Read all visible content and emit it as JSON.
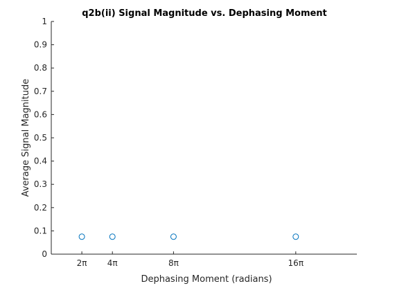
{
  "chart_data": {
    "type": "scatter",
    "title": "q2b(ii) Signal Magnitude vs. Dephasing Moment",
    "xlabel": "Dephasing Moment (radians)",
    "ylabel": "Average Signal Magnitude",
    "xlim": [
      0,
      20
    ],
    "ylim": [
      0,
      1
    ],
    "x_ticks": [
      {
        "value": 2,
        "label": "2π"
      },
      {
        "value": 4,
        "label": "4π"
      },
      {
        "value": 8,
        "label": "8π"
      },
      {
        "value": 16,
        "label": "16π"
      }
    ],
    "y_ticks": [
      {
        "value": 0,
        "label": "0"
      },
      {
        "value": 0.1,
        "label": "0.1"
      },
      {
        "value": 0.2,
        "label": "0.2"
      },
      {
        "value": 0.3,
        "label": "0.3"
      },
      {
        "value": 0.4,
        "label": "0.4"
      },
      {
        "value": 0.5,
        "label": "0.5"
      },
      {
        "value": 0.6,
        "label": "0.6"
      },
      {
        "value": 0.7,
        "label": "0.7"
      },
      {
        "value": 0.8,
        "label": "0.8"
      },
      {
        "value": 0.9,
        "label": "0.9"
      },
      {
        "value": 1,
        "label": "1"
      }
    ],
    "series": [
      {
        "x": [
          2,
          4,
          8,
          16
        ],
        "y": [
          0.075,
          0.075,
          0.075,
          0.075
        ],
        "marker": "circle",
        "color": "#0072BD"
      }
    ],
    "grid": false,
    "box": false
  }
}
